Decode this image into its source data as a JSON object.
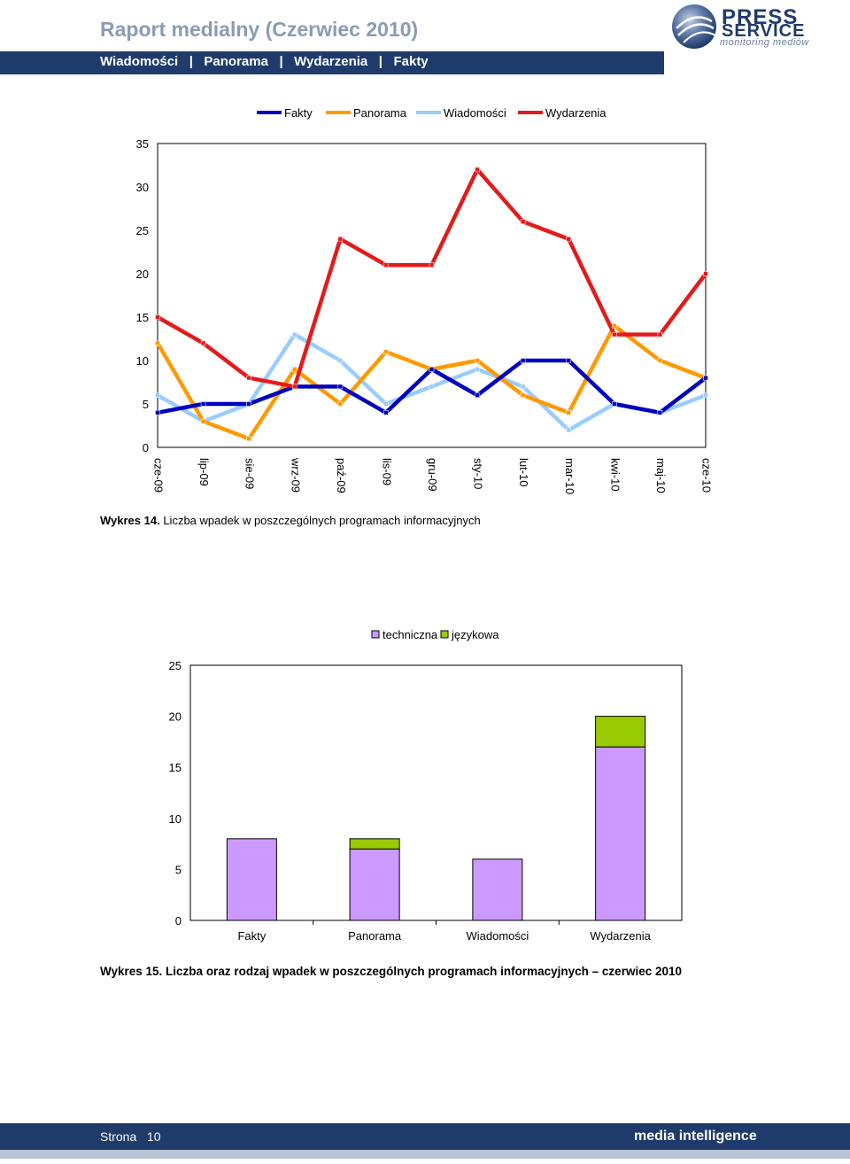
{
  "header": {
    "title": "Raport medialny (Czerwiec 2010)",
    "nav": [
      "Wiadomości",
      "Panorama",
      "Wydarzenia",
      "Fakty"
    ],
    "logo": {
      "line1": "PRESS",
      "line2": "SERVICE",
      "tagline": "monitoring mediów"
    }
  },
  "colors": {
    "nav_bg": "#1f3b6b",
    "title_color": "#8a9bb5",
    "fakty": "#0000c0",
    "panorama": "#ff9900",
    "wiadomosci": "#99ccff",
    "wydarzenia": "#e31b1b",
    "techniczna": "#cc99ff",
    "jezykowa": "#99cc00"
  },
  "chart_data": [
    {
      "type": "line",
      "x": [
        "cze-09",
        "lip-09",
        "sie-09",
        "wrz-09",
        "paź-09",
        "lis-09",
        "gru-09",
        "sty-10",
        "lut-10",
        "mar-10",
        "kwi-10",
        "maj-10",
        "cze-10"
      ],
      "ylim": [
        0,
        35
      ],
      "yticks": [
        0,
        5,
        10,
        15,
        20,
        25,
        30,
        35
      ],
      "legend_position": "top",
      "grid": false,
      "series": [
        {
          "name": "Fakty",
          "color": "#0000c0",
          "values": [
            4,
            5,
            5,
            7,
            7,
            4,
            9,
            6,
            10,
            10,
            5,
            4,
            8
          ]
        },
        {
          "name": "Panorama",
          "color": "#ff9900",
          "values": [
            12,
            3,
            1,
            9,
            5,
            11,
            9,
            10,
            6,
            4,
            14,
            10,
            8
          ]
        },
        {
          "name": "Wiadomości",
          "color": "#99ccff",
          "values": [
            6,
            3,
            5,
            13,
            10,
            5,
            7,
            9,
            7,
            2,
            5,
            4,
            6
          ]
        },
        {
          "name": "Wydarzenia",
          "color": "#e31b1b",
          "values": [
            15,
            12,
            8,
            7,
            24,
            21,
            21,
            32,
            26,
            24,
            13,
            13,
            20
          ]
        }
      ]
    },
    {
      "type": "bar",
      "stacked": true,
      "categories": [
        "Fakty",
        "Panorama",
        "Wiadomości",
        "Wydarzenia"
      ],
      "ylim": [
        0,
        25
      ],
      "yticks": [
        0,
        5,
        10,
        15,
        20,
        25
      ],
      "legend_position": "top",
      "grid": false,
      "series": [
        {
          "name": "techniczna",
          "color": "#cc99ff",
          "values": [
            8,
            7,
            6,
            17
          ]
        },
        {
          "name": "językowa",
          "color": "#99cc00",
          "values": [
            0,
            1,
            0,
            3
          ]
        }
      ]
    }
  ],
  "captions": {
    "fig14_label": "Wykres 14.",
    "fig14_text": "Liczba wpadek w poszczególnych programach informacyjnych",
    "fig15": "Wykres 15. Liczba oraz rodzaj wpadek w poszczególnych programach informacyjnych – czerwiec 2010"
  },
  "footer": {
    "page_label": "Strona",
    "page_number": "10",
    "brand": "media intelligence"
  }
}
